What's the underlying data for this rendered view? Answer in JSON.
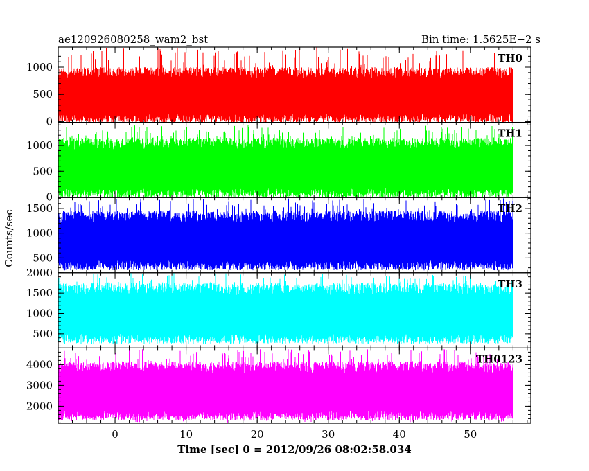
{
  "header": {
    "left_title": "ae120926080258_wam2_bst",
    "right_title": "Bin time: 1.5625E−2 s"
  },
  "chart_data": {
    "type": "line",
    "ylabel": "Counts/sec",
    "xlabel": "Time [sec] 0 = 2012/09/26 08:02:58.034",
    "x_range": [
      -8.0,
      58.5
    ],
    "x_data_range": [
      -8.0,
      56.0
    ],
    "x_ticks": [
      0,
      10,
      20,
      30,
      40,
      50
    ],
    "grid": false,
    "panels": [
      {
        "name": "TH0",
        "color": "#ff0000",
        "ylim": [
          -15,
          1370
        ],
        "y_ticks": [
          0,
          500,
          1000
        ],
        "typical_low": 60,
        "typical_high": 1000,
        "min": 0,
        "max": 1370
      },
      {
        "name": "TH1",
        "color": "#00ff00",
        "ylim": [
          -10,
          1450
        ],
        "y_ticks": [
          0,
          500,
          1000
        ],
        "typical_low": 80,
        "typical_high": 1150,
        "min": 0,
        "max": 1400
      },
      {
        "name": "TH2",
        "color": "#0000ff",
        "ylim": [
          200,
          1720
        ],
        "y_ticks": [
          500,
          1000,
          1500
        ],
        "typical_low": 350,
        "typical_high": 1450,
        "min": 250,
        "max": 1720
      },
      {
        "name": "TH3",
        "color": "#00ffff",
        "ylim": [
          150,
          2000
        ],
        "y_ticks": [
          500,
          1000,
          1500,
          2000
        ],
        "typical_low": 380,
        "typical_high": 1750,
        "min": 250,
        "max": 2000
      },
      {
        "name": "TH0123",
        "color": "#ff00ff",
        "ylim": [
          1180,
          4800
        ],
        "y_ticks": [
          2000,
          3000,
          4000
        ],
        "typical_low": 1550,
        "typical_high": 4150,
        "min": 1200,
        "max": 4800
      }
    ]
  }
}
